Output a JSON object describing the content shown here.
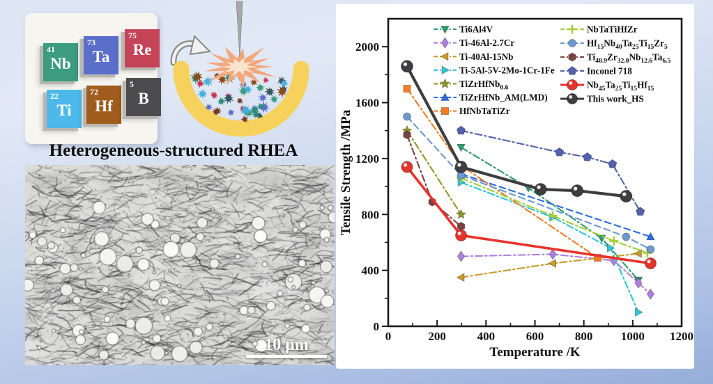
{
  "figure": {
    "caption": "Heterogeneous-structured RHEA",
    "micrograph": {
      "scale_bar_label": "10 μm"
    },
    "elements": [
      {
        "number": "41",
        "symbol": "Nb",
        "color": "#3d9c7f"
      },
      {
        "number": "73",
        "symbol": "Ta",
        "color": "#5a6fc9"
      },
      {
        "number": "75",
        "symbol": "Re",
        "color": "#c54458"
      },
      {
        "number": "22",
        "symbol": "Ti",
        "color": "#4cb9ea"
      },
      {
        "number": "72",
        "symbol": "Hf",
        "color": "#a05c1d"
      },
      {
        "number": "5",
        "symbol": "B",
        "color": "#4c4c4e"
      }
    ],
    "illustration": {
      "crucible_color": "#f6d25c",
      "spark_color": "#f3a87c",
      "spark_core_color": "#fbe4cf",
      "needle_color": "#a8a8a8",
      "arrow_color": "#8a8a8a",
      "particle_colors": [
        "#2e8b74",
        "#5b6fc8",
        "#7a3b20",
        "#c43a52",
        "#45b0e0",
        "#34555a",
        "#3a9b7d",
        "#8a4a16"
      ]
    }
  },
  "chart_data": {
    "type": "line",
    "title": "",
    "xlabel": "Temperature /K",
    "ylabel": "Tensile Strength /MPa",
    "xlim": [
      0,
      1200
    ],
    "ylim": [
      0,
      2200
    ],
    "xticks": [
      0,
      200,
      400,
      600,
      800,
      1000,
      1200
    ],
    "yticks": [
      0,
      400,
      800,
      1200,
      1600,
      2000
    ],
    "x_minor_step": 100,
    "y_minor_step": 200,
    "grid": false,
    "legend": {
      "position": "top-inside",
      "columns": 2
    },
    "series": [
      {
        "name": "Ti6Al4V",
        "color": "#2e9b6e",
        "marker": "triangle-down",
        "line": "dashdot",
        "width": 2.1,
        "msize": 6,
        "points": [
          [
            298,
            1280
          ],
          [
            573,
            990
          ],
          [
            873,
            630
          ],
          [
            1023,
            330
          ]
        ]
      },
      {
        "name": "Ti-46Al-2.7Cr",
        "color": "#ad7fdb",
        "marker": "diamond",
        "line": "dashdot",
        "width": 2.1,
        "msize": 6,
        "points": [
          [
            298,
            500
          ],
          [
            673,
            515
          ],
          [
            923,
            470
          ],
          [
            1023,
            310
          ],
          [
            1073,
            230
          ]
        ]
      },
      {
        "name": "Ti-40Al-15Nb",
        "color": "#c79b28",
        "marker": "triangle-left",
        "line": "dashdot",
        "width": 2.1,
        "msize": 6,
        "points": [
          [
            298,
            350
          ],
          [
            673,
            450
          ],
          [
            1023,
            520
          ]
        ]
      },
      {
        "name": "Ti-5Al-5V-2Mo-1Cr-1Fe",
        "color": "#30c5d8",
        "marker": "triangle-right",
        "line": "dashdot",
        "width": 2.1,
        "msize": 6,
        "points": [
          [
            298,
            1030
          ],
          [
            673,
            780
          ],
          [
            909,
            560
          ],
          [
            1023,
            100
          ]
        ]
      },
      {
        "name": "TiZrHfNb0.6",
        "rich": [
          [
            "n",
            "TiZrHfNb"
          ],
          [
            "s",
            "0.6"
          ]
        ],
        "color": "#8f9526",
        "marker": "star",
        "line": "dashdot",
        "width": 2.1,
        "msize": 7,
        "points": [
          [
            77,
            1400
          ],
          [
            298,
            800
          ]
        ]
      },
      {
        "name": "TiZrHfNb_AM(LMD)",
        "color": "#2c6ce0",
        "marker": "triangle-up",
        "line": "dashed",
        "width": 2.1,
        "msize": 6,
        "points": [
          [
            298,
            1090
          ],
          [
            1073,
            640
          ]
        ]
      },
      {
        "name": "HfNbTaTiZr",
        "color": "#f57c22",
        "marker": "square",
        "line": "dashdot",
        "width": 2.1,
        "msize": 6,
        "points": [
          [
            77,
            1700
          ],
          [
            298,
            1150
          ],
          [
            857,
            490
          ]
        ]
      },
      {
        "name": "NbTaTiHfZr",
        "color": "#a5cc3a",
        "marker": "plus",
        "line": "dashdot",
        "width": 2.1,
        "msize": 6.5,
        "points": [
          [
            298,
            1060
          ],
          [
            673,
            790
          ],
          [
            923,
            610
          ],
          [
            1060,
            525
          ]
        ]
      },
      {
        "name": "Hf15Nb40Ta25Ti15Zr5",
        "rich": [
          [
            "n",
            "Hf"
          ],
          [
            "s",
            "15"
          ],
          [
            "n",
            "Nb"
          ],
          [
            "s",
            "40"
          ],
          [
            "n",
            "Ta"
          ],
          [
            "s",
            "25"
          ],
          [
            "n",
            "Ti"
          ],
          [
            "s",
            "15"
          ],
          [
            "n",
            "Zr"
          ],
          [
            "s",
            "5"
          ]
        ],
        "color": "#6d99cf",
        "marker": "circle",
        "line": "dashed",
        "width": 2.1,
        "msize": 5.5,
        "points": [
          [
            77,
            1500
          ],
          [
            298,
            1080
          ],
          [
            973,
            640
          ],
          [
            1073,
            550
          ]
        ]
      },
      {
        "name": "Ti48.9Zr32.0Nb12.6Ta6.5",
        "rich": [
          [
            "n",
            "Ti"
          ],
          [
            "s",
            "48.9"
          ],
          [
            "n",
            "Zr"
          ],
          [
            "s",
            "32.0"
          ],
          [
            "n",
            "Nb"
          ],
          [
            "s",
            "12.6"
          ],
          [
            "n",
            "Ta"
          ],
          [
            "s",
            "6.5"
          ]
        ],
        "color": "#7b4242",
        "marker": "hexagon",
        "line": "dashdot",
        "width": 2.1,
        "msize": 6,
        "points": [
          [
            77,
            1370
          ],
          [
            180,
            890
          ],
          [
            298,
            715
          ]
        ]
      },
      {
        "name": "Inconel 718",
        "color": "#5262ab",
        "marker": "pentagon",
        "line": "dashdot",
        "width": 2.1,
        "msize": 6.5,
        "points": [
          [
            298,
            1400
          ],
          [
            700,
            1245
          ],
          [
            814,
            1210
          ],
          [
            917,
            1160
          ],
          [
            1031,
            820
          ]
        ]
      },
      {
        "name": "Nb45Ta25Ti15Hf15",
        "rich": [
          [
            "n",
            "Nb"
          ],
          [
            "s",
            "45"
          ],
          [
            "n",
            "Ta"
          ],
          [
            "s",
            "25"
          ],
          [
            "n",
            "Ti"
          ],
          [
            "s",
            "15"
          ],
          [
            "n",
            "Hf"
          ],
          [
            "s",
            "15"
          ]
        ],
        "color": "#e8332b",
        "marker": "circle-big",
        "line": "solid",
        "width": 3.6,
        "msize": 8,
        "points": [
          [
            77,
            1140
          ],
          [
            298,
            650
          ],
          [
            1073,
            450
          ]
        ]
      },
      {
        "name": "This work_HS",
        "color": "#3e3e40",
        "marker": "circle-big",
        "line": "solid",
        "width": 4.2,
        "msize": 8.5,
        "points": [
          [
            77,
            1860
          ],
          [
            298,
            1140
          ],
          [
            623,
            980
          ],
          [
            773,
            970
          ],
          [
            973,
            930
          ]
        ]
      }
    ]
  }
}
